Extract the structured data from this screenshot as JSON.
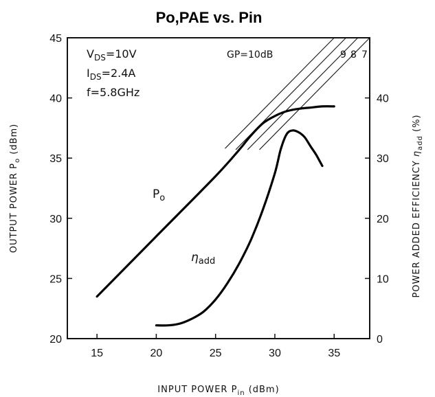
{
  "chart_data": {
    "type": "line",
    "title": "Po,PAE vs. Pin",
    "xlabel": "INPUT POWER Pin (dBm)",
    "ylabel_left": "OUTPUT POWER Po (dBm)",
    "ylabel_right": "POWER ADDED EFFICIENCY ηadd (%)",
    "xlim": [
      12.5,
      38
    ],
    "ylim_left": [
      20,
      45
    ],
    "ylim_right": [
      0,
      50
    ],
    "x_ticks": [
      15,
      20,
      25,
      30,
      35
    ],
    "y_left_ticks": [
      20,
      25,
      30,
      35,
      40,
      45
    ],
    "y_right_ticks": [
      0,
      10,
      20,
      30,
      40
    ],
    "conditions": [
      "VDS=10V",
      "IDS=2.4A",
      "f=5.8GHz"
    ],
    "gain_lines": {
      "prefix": "GP=",
      "values": [
        10,
        9,
        8,
        7
      ],
      "labels": [
        "10dB",
        "9",
        "8",
        "7"
      ]
    },
    "series": [
      {
        "name": "Po",
        "axis": "left",
        "x": [
          15,
          20,
          25,
          27,
          28,
          29,
          30,
          31,
          32,
          33,
          34,
          35
        ],
        "y": [
          23.5,
          28.5,
          33.5,
          35.7,
          36.9,
          37.9,
          38.5,
          38.9,
          39.1,
          39.2,
          39.3,
          39.3
        ]
      },
      {
        "name": "ηadd",
        "axis": "right",
        "x": [
          20,
          21,
          22,
          23,
          24,
          25,
          26,
          27,
          28,
          29,
          30,
          30.5,
          31,
          31.5,
          32,
          32.5,
          33,
          33.5,
          34
        ],
        "y": [
          2.2,
          2.2,
          2.5,
          3.3,
          4.5,
          6.5,
          9.2,
          12.5,
          16.5,
          21.5,
          27.5,
          31.5,
          34,
          34.6,
          34.3,
          33.5,
          32,
          30.5,
          28.7
        ]
      }
    ]
  }
}
